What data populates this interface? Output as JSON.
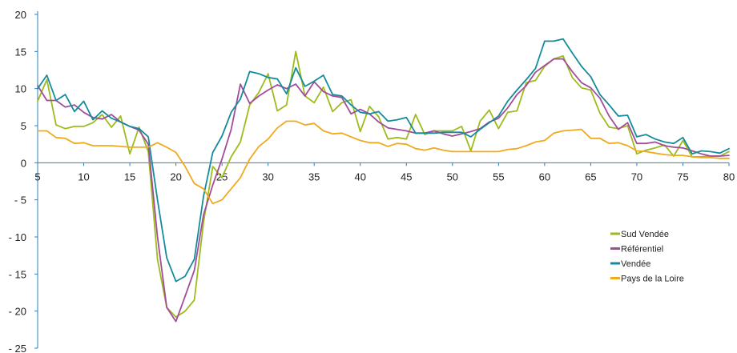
{
  "chart_data": {
    "type": "line",
    "title": "",
    "xlabel": "",
    "ylabel": "",
    "xlim": [
      5,
      80
    ],
    "ylim": [
      -25,
      20
    ],
    "x_ticks": [
      5,
      10,
      15,
      20,
      25,
      30,
      35,
      40,
      45,
      50,
      55,
      60,
      65,
      70,
      75,
      80
    ],
    "y_ticks": [
      20,
      15,
      10,
      5,
      0,
      -5,
      -10,
      -15,
      -20,
      -25
    ],
    "y_tick_labels": [
      "20",
      "15",
      "10",
      "5",
      "0",
      "- 5",
      "- 10",
      "- 15",
      "- 20",
      "- 25"
    ],
    "grid": false,
    "legend_position": "right",
    "x": [
      5,
      6,
      7,
      8,
      9,
      10,
      11,
      12,
      13,
      14,
      15,
      16,
      17,
      18,
      19,
      20,
      21,
      22,
      23,
      24,
      25,
      26,
      27,
      28,
      29,
      30,
      31,
      32,
      33,
      34,
      35,
      36,
      37,
      38,
      39,
      40,
      41,
      42,
      43,
      44,
      45,
      46,
      47,
      48,
      49,
      50,
      51,
      52,
      53,
      54,
      55,
      56,
      57,
      58,
      59,
      60,
      61,
      62,
      63,
      64,
      65,
      66,
      67,
      68,
      69,
      70,
      71,
      72,
      73,
      74,
      75,
      76,
      77,
      78,
      79,
      80
    ],
    "series": [
      {
        "name": "Sud Vendée",
        "color": "#9dbc1c",
        "values": [
          8.3,
          11.2,
          5.1,
          4.6,
          4.9,
          4.9,
          5.4,
          6.5,
          4.8,
          6.3,
          1.2,
          4.8,
          1.5,
          -13.0,
          -19.5,
          -20.8,
          -20.0,
          -18.5,
          -8.0,
          -0.5,
          -2.0,
          0.8,
          2.8,
          7.8,
          9.5,
          12.0,
          7.0,
          7.8,
          15.0,
          9.0,
          8.1,
          10.2,
          6.9,
          8.1,
          8.5,
          4.2,
          7.6,
          6.2,
          3.2,
          3.4,
          3.2,
          6.5,
          3.8,
          4.3,
          4.3,
          4.3,
          4.9,
          1.6,
          5.6,
          7.1,
          4.6,
          6.8,
          7.0,
          10.8,
          11.1,
          13.0,
          14.0,
          14.4,
          11.5,
          10.1,
          9.8,
          6.7,
          4.8,
          4.6,
          5.0,
          1.2,
          1.7,
          2.0,
          2.4,
          0.9,
          3.0,
          0.8,
          0.8,
          0.9,
          0.9,
          1.5
        ]
      },
      {
        "name": "Référentiel",
        "color": "#a44c9c",
        "values": [
          10.4,
          8.4,
          8.4,
          7.5,
          7.8,
          6.8,
          6.1,
          5.9,
          6.5,
          5.5,
          4.9,
          4.4,
          2.5,
          -10.0,
          -19.5,
          -21.4,
          -18.0,
          -14.5,
          -7.0,
          -3.0,
          0.5,
          4.5,
          10.6,
          8.0,
          9.0,
          9.8,
          10.5,
          10.0,
          10.6,
          9.0,
          10.9,
          9.6,
          9.0,
          8.8,
          6.6,
          7.2,
          6.6,
          5.5,
          4.7,
          4.5,
          4.3,
          4.0,
          4.0,
          4.3,
          3.9,
          3.6,
          3.9,
          4.2,
          4.6,
          5.5,
          6.0,
          7.4,
          9.2,
          10.4,
          12.2,
          13.1,
          14.0,
          14.0,
          12.3,
          10.8,
          10.1,
          8.7,
          6.3,
          4.5,
          5.4,
          2.6,
          2.6,
          2.8,
          2.3,
          2.1,
          2.0,
          1.6,
          1.2,
          0.9,
          0.9,
          1.0
        ]
      },
      {
        "name": "Vendée",
        "color": "#148c9c",
        "values": [
          10.0,
          11.8,
          8.4,
          9.2,
          6.9,
          8.3,
          5.8,
          7.0,
          6.0,
          5.5,
          4.9,
          4.6,
          3.5,
          -5.0,
          -12.8,
          -16.0,
          -15.3,
          -13.0,
          -4.5,
          1.4,
          3.6,
          6.8,
          8.6,
          12.3,
          12.0,
          11.5,
          11.3,
          9.3,
          12.8,
          10.3,
          11.0,
          11.8,
          9.2,
          9.0,
          7.8,
          6.8,
          6.6,
          6.9,
          5.6,
          5.8,
          6.1,
          4.0,
          4.0,
          4.0,
          4.1,
          4.1,
          4.1,
          3.5,
          4.5,
          5.4,
          6.3,
          8.3,
          9.8,
          11.2,
          12.7,
          16.4,
          16.4,
          16.7,
          14.8,
          13.0,
          11.6,
          9.2,
          7.8,
          6.3,
          6.4,
          3.5,
          3.8,
          3.2,
          2.8,
          2.6,
          3.4,
          1.2,
          1.6,
          1.5,
          1.3,
          1.9
        ]
      },
      {
        "name": "Pays de la Loire",
        "color": "#f0aa1e",
        "values": [
          4.3,
          4.3,
          3.4,
          3.3,
          2.6,
          2.7,
          2.3,
          2.3,
          2.3,
          2.2,
          2.1,
          2.1,
          2.1,
          2.7,
          2.1,
          1.4,
          -0.5,
          -2.8,
          -3.5,
          -5.5,
          -5.0,
          -3.5,
          -2.0,
          0.5,
          2.2,
          3.2,
          4.7,
          5.6,
          5.6,
          5.1,
          5.3,
          4.3,
          3.9,
          4.0,
          3.5,
          3.0,
          2.7,
          2.7,
          2.2,
          2.6,
          2.5,
          1.9,
          1.7,
          2.0,
          1.7,
          1.5,
          1.5,
          1.5,
          1.5,
          1.5,
          1.5,
          1.8,
          1.9,
          2.3,
          2.8,
          3.0,
          4.0,
          4.3,
          4.4,
          4.5,
          3.3,
          3.3,
          2.6,
          2.7,
          2.3,
          1.6,
          1.5,
          1.3,
          1.1,
          1.0,
          1.0,
          0.8,
          0.7,
          0.7,
          0.6,
          0.6
        ]
      }
    ]
  }
}
